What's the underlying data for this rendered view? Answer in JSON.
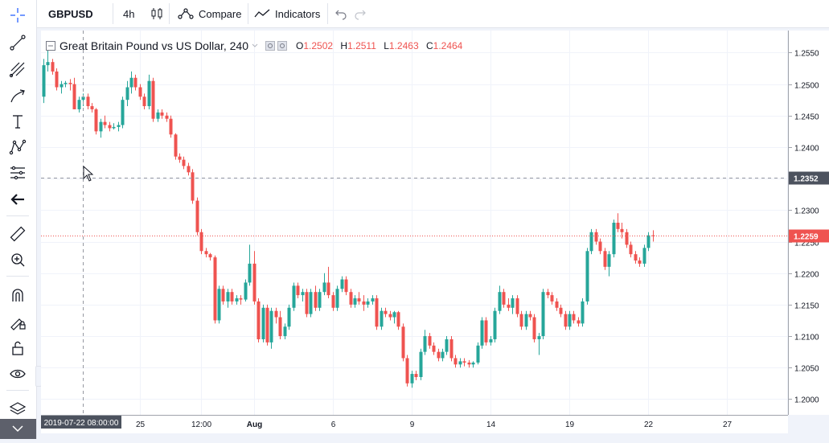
{
  "header": {
    "symbol": "GBPUSD",
    "interval": "4h",
    "compare_label": "Compare",
    "indicators_label": "Indicators"
  },
  "legend": {
    "title": "Great Britain Pound vs US Dollar, 240",
    "open_label": "O",
    "open": "1.2502",
    "high_label": "H",
    "high": "1.2511",
    "low_label": "L",
    "low": "1.2463",
    "close_label": "C",
    "close": "1.2464"
  },
  "toolbar": {
    "icons": [
      "crosshair-icon",
      "trend-line-icon",
      "fib-icon",
      "brush-icon",
      "text-icon",
      "pattern-icon",
      "prediction-icon",
      "back-arrow-icon",
      "ruler-icon",
      "zoom-in-icon",
      "magnet-icon",
      "lock-drawing-icon",
      "unlock-icon",
      "eye-icon",
      "layers-icon",
      "collapse-icon"
    ]
  },
  "chart_data": {
    "type": "candlestick",
    "series_name": "GBPUSD",
    "ylim": [
      1.1975,
      1.2585
    ],
    "y_ticks": [
      "1.2550",
      "1.2500",
      "1.2450",
      "1.2400",
      "1.2350",
      "1.2300",
      "1.2250",
      "1.2200",
      "1.2150",
      "1.2100",
      "1.2050",
      "1.2000"
    ],
    "x_ticks": [
      {
        "label": "25",
        "i": 22
      },
      {
        "label": "12:00",
        "i": 36
      },
      {
        "label": "Aug",
        "i": 48
      },
      {
        "label": "6",
        "i": 66
      },
      {
        "label": "9",
        "i": 84
      },
      {
        "label": "14",
        "i": 102
      },
      {
        "label": "19",
        "i": 120
      },
      {
        "label": "22",
        "i": 138
      },
      {
        "label": "27",
        "i": 156
      }
    ],
    "crosshair_price": "1.2352",
    "crosshair_date": "2019-07-22 08:00:00",
    "last_price": "1.2259",
    "candles": [
      [
        1.248,
        1.254,
        1.247,
        1.253
      ],
      [
        1.253,
        1.2555,
        1.252,
        1.2535
      ],
      [
        1.2535,
        1.254,
        1.2515,
        1.252
      ],
      [
        1.252,
        1.2525,
        1.249,
        1.2495
      ],
      [
        1.2495,
        1.2505,
        1.2485,
        1.25
      ],
      [
        1.25,
        1.2505,
        1.2495,
        1.2502
      ],
      [
        1.2502,
        1.2508,
        1.249,
        1.25
      ],
      [
        1.25,
        1.251,
        1.246,
        1.246
      ],
      [
        1.246,
        1.248,
        1.2455,
        1.2475
      ],
      [
        1.2475,
        1.2485,
        1.2465,
        1.248
      ],
      [
        1.248,
        1.2485,
        1.246,
        1.2465
      ],
      [
        1.2465,
        1.247,
        1.2455,
        1.246
      ],
      [
        1.246,
        1.2462,
        1.242,
        1.2425
      ],
      [
        1.2425,
        1.2445,
        1.2415,
        1.244
      ],
      [
        1.244,
        1.245,
        1.243,
        1.2435
      ],
      [
        1.2435,
        1.244,
        1.2425,
        1.243
      ],
      [
        1.243,
        1.2438,
        1.2428,
        1.2432
      ],
      [
        1.2432,
        1.244,
        1.2425,
        1.2435
      ],
      [
        1.2435,
        1.248,
        1.243,
        1.2475
      ],
      [
        1.2475,
        1.2505,
        1.2465,
        1.2495
      ],
      [
        1.2495,
        1.252,
        1.2485,
        1.251
      ],
      [
        1.251,
        1.2515,
        1.249,
        1.2495
      ],
      [
        1.2495,
        1.25,
        1.2475,
        1.248
      ],
      [
        1.248,
        1.2485,
        1.246,
        1.2465
      ],
      [
        1.2465,
        1.2515,
        1.246,
        1.2505
      ],
      [
        1.2505,
        1.251,
        1.244,
        1.2445
      ],
      [
        1.2445,
        1.246,
        1.244,
        1.2455
      ],
      [
        1.2455,
        1.246,
        1.2445,
        1.245
      ],
      [
        1.245,
        1.2455,
        1.244,
        1.2445
      ],
      [
        1.2445,
        1.245,
        1.2415,
        1.242
      ],
      [
        1.242,
        1.2422,
        1.238,
        1.2385
      ],
      [
        1.2385,
        1.239,
        1.2375,
        1.238
      ],
      [
        1.238,
        1.2385,
        1.2365,
        1.237
      ],
      [
        1.237,
        1.2375,
        1.2355,
        1.236
      ],
      [
        1.236,
        1.2365,
        1.231,
        1.2315
      ],
      [
        1.2315,
        1.232,
        1.226,
        1.2265
      ],
      [
        1.2265,
        1.227,
        1.223,
        1.2235
      ],
      [
        1.2235,
        1.224,
        1.2225,
        1.223
      ],
      [
        1.223,
        1.2232,
        1.222,
        1.2225
      ],
      [
        1.2225,
        1.2228,
        1.212,
        1.2125
      ],
      [
        1.2125,
        1.218,
        1.212,
        1.2175
      ],
      [
        1.2175,
        1.218,
        1.215,
        1.2155
      ],
      [
        1.2155,
        1.2175,
        1.2145,
        1.217
      ],
      [
        1.217,
        1.2175,
        1.215,
        1.2155
      ],
      [
        1.2155,
        1.2165,
        1.215,
        1.216
      ],
      [
        1.216,
        1.2165,
        1.215,
        1.2158
      ],
      [
        1.2158,
        1.219,
        1.2155,
        1.2185
      ],
      [
        1.2185,
        1.2245,
        1.218,
        1.2215
      ],
      [
        1.2215,
        1.2235,
        1.215,
        1.2155
      ],
      [
        1.2155,
        1.216,
        1.209,
        1.2095
      ],
      [
        1.2095,
        1.215,
        1.209,
        1.2145
      ],
      [
        1.2145,
        1.215,
        1.2085,
        1.209
      ],
      [
        1.209,
        1.2145,
        1.208,
        1.214
      ],
      [
        1.214,
        1.2145,
        1.212,
        1.213
      ],
      [
        1.213,
        1.214,
        1.2095,
        1.21
      ],
      [
        1.21,
        1.212,
        1.2095,
        1.2115
      ],
      [
        1.2115,
        1.215,
        1.211,
        1.2145
      ],
      [
        1.2145,
        1.2185,
        1.214,
        1.218
      ],
      [
        1.218,
        1.2185,
        1.216,
        1.2165
      ],
      [
        1.2165,
        1.2175,
        1.2155,
        1.217
      ],
      [
        1.217,
        1.2175,
        1.213,
        1.2135
      ],
      [
        1.2135,
        1.2175,
        1.213,
        1.217
      ],
      [
        1.217,
        1.218,
        1.214,
        1.2145
      ],
      [
        1.2145,
        1.2175,
        1.214,
        1.217
      ],
      [
        1.217,
        1.22,
        1.2165,
        1.2185
      ],
      [
        1.2185,
        1.221,
        1.216,
        1.2165
      ],
      [
        1.2165,
        1.217,
        1.214,
        1.2145
      ],
      [
        1.2145,
        1.218,
        1.214,
        1.2175
      ],
      [
        1.2175,
        1.2195,
        1.217,
        1.219
      ],
      [
        1.219,
        1.2195,
        1.2165,
        1.217
      ],
      [
        1.217,
        1.2175,
        1.2145,
        1.215
      ],
      [
        1.215,
        1.2165,
        1.2145,
        1.216
      ],
      [
        1.216,
        1.217,
        1.215,
        1.2155
      ],
      [
        1.2155,
        1.2165,
        1.214,
        1.215
      ],
      [
        1.215,
        1.216,
        1.2145,
        1.2155
      ],
      [
        1.2155,
        1.2165,
        1.215,
        1.216
      ],
      [
        1.216,
        1.2165,
        1.211,
        1.2115
      ],
      [
        1.2115,
        1.2145,
        1.211,
        1.214
      ],
      [
        1.214,
        1.2145,
        1.213,
        1.2135
      ],
      [
        1.2135,
        1.214,
        1.2125,
        1.213
      ],
      [
        1.213,
        1.214,
        1.212,
        1.2138
      ],
      [
        1.2138,
        1.214,
        1.211,
        1.2115
      ],
      [
        1.2115,
        1.212,
        1.206,
        1.2065
      ],
      [
        1.2065,
        1.207,
        1.202,
        1.2025
      ],
      [
        1.2025,
        1.2045,
        1.2018,
        1.204
      ],
      [
        1.204,
        1.2045,
        1.203,
        1.2035
      ],
      [
        1.2035,
        1.208,
        1.203,
        1.2075
      ],
      [
        1.2075,
        1.211,
        1.207,
        1.21
      ],
      [
        1.21,
        1.2105,
        1.208,
        1.2085
      ],
      [
        1.2085,
        1.209,
        1.207,
        1.2075
      ],
      [
        1.2075,
        1.208,
        1.206,
        1.2065
      ],
      [
        1.2065,
        1.208,
        1.206,
        1.2075
      ],
      [
        1.2075,
        1.21,
        1.207,
        1.2095
      ],
      [
        1.2095,
        1.21,
        1.206,
        1.2065
      ],
      [
        1.2065,
        1.207,
        1.205,
        1.2055
      ],
      [
        1.2055,
        1.2065,
        1.205,
        1.206
      ],
      [
        1.206,
        1.2065,
        1.2052,
        1.2058
      ],
      [
        1.2058,
        1.2062,
        1.205,
        1.2055
      ],
      [
        1.2055,
        1.206,
        1.205,
        1.2058
      ],
      [
        1.2058,
        1.209,
        1.2055,
        1.2085
      ],
      [
        1.2085,
        1.213,
        1.208,
        1.2125
      ],
      [
        1.2125,
        1.213,
        1.2085,
        1.209
      ],
      [
        1.209,
        1.21,
        1.2085,
        1.2095
      ],
      [
        1.2095,
        1.2145,
        1.209,
        1.214
      ],
      [
        1.214,
        1.218,
        1.2135,
        1.217
      ],
      [
        1.217,
        1.2175,
        1.2145,
        1.215
      ],
      [
        1.215,
        1.216,
        1.214,
        1.2145
      ],
      [
        1.2145,
        1.2165,
        1.2135,
        1.216
      ],
      [
        1.216,
        1.2165,
        1.213,
        1.2135
      ],
      [
        1.2135,
        1.214,
        1.211,
        1.2115
      ],
      [
        1.2115,
        1.214,
        1.211,
        1.2135
      ],
      [
        1.2135,
        1.214,
        1.2125,
        1.213
      ],
      [
        1.213,
        1.2135,
        1.209,
        1.2095
      ],
      [
        1.2095,
        1.2105,
        1.207,
        1.21
      ],
      [
        1.21,
        1.2175,
        1.2095,
        1.217
      ],
      [
        1.217,
        1.2175,
        1.216,
        1.2165
      ],
      [
        1.2165,
        1.217,
        1.215,
        1.2155
      ],
      [
        1.2155,
        1.216,
        1.214,
        1.2145
      ],
      [
        1.2145,
        1.215,
        1.213,
        1.2135
      ],
      [
        1.2135,
        1.214,
        1.211,
        1.2115
      ],
      [
        1.2115,
        1.214,
        1.211,
        1.2135
      ],
      [
        1.2135,
        1.214,
        1.212,
        1.2125
      ],
      [
        1.2125,
        1.213,
        1.2115,
        1.212
      ],
      [
        1.212,
        1.216,
        1.2115,
        1.2155
      ],
      [
        1.2155,
        1.224,
        1.215,
        1.2235
      ],
      [
        1.2235,
        1.227,
        1.223,
        1.2265
      ],
      [
        1.2265,
        1.227,
        1.2245,
        1.225
      ],
      [
        1.225,
        1.2255,
        1.223,
        1.2235
      ],
      [
        1.2235,
        1.224,
        1.2205,
        1.221
      ],
      [
        1.221,
        1.2235,
        1.2195,
        1.223
      ],
      [
        1.223,
        1.2285,
        1.2225,
        1.228
      ],
      [
        1.228,
        1.2295,
        1.2265,
        1.227
      ],
      [
        1.227,
        1.228,
        1.2255,
        1.2265
      ],
      [
        1.2265,
        1.227,
        1.224,
        1.2245
      ],
      [
        1.2245,
        1.225,
        1.2225,
        1.223
      ],
      [
        1.223,
        1.2235,
        1.2215,
        1.222
      ],
      [
        1.222,
        1.2225,
        1.221,
        1.2215
      ],
      [
        1.2215,
        1.2245,
        1.221,
        1.224
      ],
      [
        1.224,
        1.2265,
        1.2235,
        1.226
      ],
      [
        1.226,
        1.2268,
        1.225,
        1.2259
      ]
    ]
  }
}
